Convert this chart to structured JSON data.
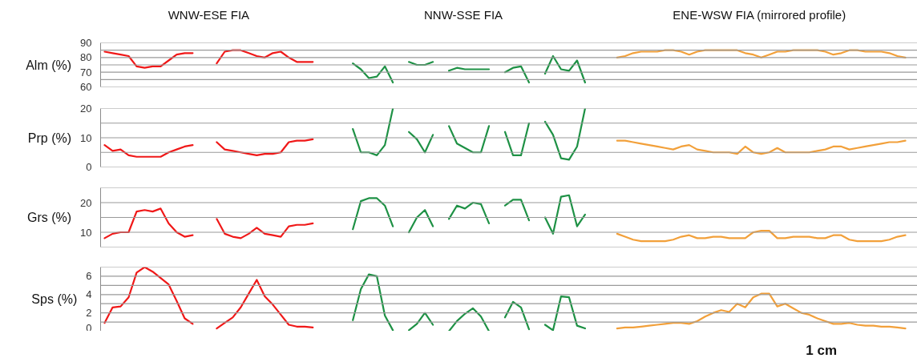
{
  "chart_data": [
    {
      "type": "line",
      "ylabel": "Alm (%)",
      "tick_labels": "y",
      "grid": "y",
      "annotations": [
        "WNW-ESE FIA",
        "NNW-SSE FIA",
        "ENE-WSW FIA (mirrored profile)"
      ],
      "ylim": [
        60,
        90
      ],
      "yticks": [
        60,
        {
          "value": 65,
          "label": null
        },
        70,
        {
          "value": 75,
          "label": null
        },
        80,
        {
          "value": 85,
          "label": null
        },
        90
      ],
      "categories": [
        null,
        null,
        null,
        null,
        null,
        null,
        null,
        null,
        null,
        null,
        null,
        null,
        null,
        null,
        null,
        null,
        null,
        null,
        null,
        null,
        null,
        null,
        null,
        null,
        null,
        null,
        null,
        null,
        null,
        null,
        null,
        null,
        null,
        null,
        null,
        null,
        null,
        null,
        null,
        null,
        null,
        null,
        null,
        null,
        null,
        null,
        null,
        null,
        null,
        null,
        null,
        null,
        null,
        null,
        null,
        null,
        null,
        null,
        null,
        null,
        null,
        null,
        null,
        null,
        null,
        null,
        null,
        null,
        null,
        null,
        null,
        null,
        null,
        null,
        null,
        null,
        null,
        null,
        null,
        null,
        null,
        null,
        null,
        null,
        null,
        null,
        null,
        null,
        null,
        null,
        null,
        null,
        null,
        null,
        null,
        null,
        null,
        null,
        null,
        null,
        null,
        null
      ],
      "series": [
        {
          "color": "#f01818",
          "values": [
            84,
            83,
            82,
            81,
            74,
            73,
            74,
            74,
            78,
            82,
            83,
            83,
            null,
            null,
            76,
            84,
            85,
            85,
            83,
            81,
            80,
            83,
            84,
            80,
            77,
            77,
            77,
            null,
            null,
            null,
            null,
            null,
            null,
            null,
            null,
            null,
            null,
            null,
            null,
            null,
            null,
            null,
            null,
            null,
            null,
            null,
            null,
            null,
            null,
            null,
            null,
            null,
            null,
            null,
            null,
            null,
            null,
            null,
            null,
            null,
            null,
            null,
            null,
            null,
            null,
            null,
            null,
            null,
            null,
            null,
            null,
            null,
            null,
            null,
            null,
            null,
            null,
            null,
            null,
            null,
            null,
            null,
            null,
            null,
            null,
            null,
            null,
            null,
            null,
            null,
            null,
            null,
            null,
            null,
            null,
            null,
            null,
            null,
            null,
            null,
            null,
            null
          ]
        },
        {
          "color": "#1e9145",
          "values": [
            null,
            null,
            null,
            null,
            null,
            null,
            null,
            null,
            null,
            null,
            null,
            null,
            null,
            null,
            null,
            null,
            null,
            null,
            null,
            null,
            null,
            null,
            null,
            null,
            null,
            null,
            null,
            null,
            null,
            null,
            null,
            76,
            72,
            66,
            67,
            74,
            63,
            null,
            77,
            75,
            75,
            77,
            null,
            71,
            73,
            72,
            72,
            72,
            72,
            null,
            70,
            73,
            74,
            63,
            null,
            69,
            81,
            72,
            71,
            78,
            63,
            null,
            null,
            null,
            null,
            null,
            null,
            null,
            null,
            null,
            null,
            null,
            null,
            null,
            null,
            null,
            null,
            null,
            null,
            null,
            null,
            null,
            null,
            null,
            null,
            null,
            null,
            null,
            null,
            null,
            null,
            null,
            null,
            null,
            null,
            null,
            null,
            null,
            null,
            null,
            null,
            null
          ]
        },
        {
          "color": "#f2a03a",
          "values": [
            null,
            null,
            null,
            null,
            null,
            null,
            null,
            null,
            null,
            null,
            null,
            null,
            null,
            null,
            null,
            null,
            null,
            null,
            null,
            null,
            null,
            null,
            null,
            null,
            null,
            null,
            null,
            null,
            null,
            null,
            null,
            null,
            null,
            null,
            null,
            null,
            null,
            null,
            null,
            null,
            null,
            null,
            null,
            null,
            null,
            null,
            null,
            null,
            null,
            null,
            null,
            null,
            null,
            null,
            null,
            null,
            null,
            null,
            null,
            null,
            null,
            null,
            null,
            null,
            80,
            81,
            83,
            84,
            84,
            84,
            85,
            85,
            84,
            82,
            84,
            85,
            85,
            85,
            85,
            85,
            83,
            82,
            80,
            82,
            84,
            84,
            85,
            85,
            85,
            85,
            84,
            82,
            83,
            85,
            85,
            84,
            84,
            84,
            83,
            81,
            80,
            null
          ]
        }
      ]
    },
    {
      "type": "line",
      "ylabel": "Prp (%)",
      "tick_labels": "y",
      "grid": "y",
      "ylim": [
        0,
        20
      ],
      "yticks": [
        0,
        {
          "value": 5,
          "label": null
        },
        10,
        {
          "value": 15,
          "label": null
        },
        20
      ],
      "categories": [
        null,
        null,
        null,
        null,
        null,
        null,
        null,
        null,
        null,
        null,
        null,
        null,
        null,
        null,
        null,
        null,
        null,
        null,
        null,
        null,
        null,
        null,
        null,
        null,
        null,
        null,
        null,
        null,
        null,
        null,
        null,
        null,
        null,
        null,
        null,
        null,
        null,
        null,
        null,
        null,
        null,
        null,
        null,
        null,
        null,
        null,
        null,
        null,
        null,
        null,
        null,
        null,
        null,
        null,
        null,
        null,
        null,
        null,
        null,
        null,
        null,
        null,
        null,
        null,
        null,
        null,
        null,
        null,
        null,
        null,
        null,
        null,
        null,
        null,
        null,
        null,
        null,
        null,
        null,
        null,
        null,
        null,
        null,
        null,
        null,
        null,
        null,
        null,
        null,
        null,
        null,
        null,
        null,
        null,
        null,
        null,
        null,
        null,
        null,
        null,
        null,
        null
      ],
      "series": [
        {
          "color": "#f01818",
          "values": [
            7.5,
            5.5,
            6,
            4,
            3.5,
            3.5,
            3.5,
            3.5,
            5,
            6,
            7,
            7.5,
            null,
            null,
            8.5,
            6,
            5.5,
            5,
            4.5,
            4,
            4.5,
            4.5,
            5,
            8.5,
            9,
            9,
            9.5,
            null,
            null,
            null,
            null,
            null,
            null,
            null,
            null,
            null,
            null,
            null,
            null,
            null,
            null,
            null,
            null,
            null,
            null,
            null,
            null,
            null,
            null,
            null,
            null,
            null,
            null,
            null,
            null,
            null,
            null,
            null,
            null,
            null,
            null,
            null,
            null,
            null,
            null,
            null,
            null,
            null,
            null,
            null,
            null,
            null,
            null,
            null,
            null,
            null,
            null,
            null,
            null,
            null,
            null,
            null,
            null,
            null,
            null,
            null,
            null,
            null,
            null,
            null,
            null,
            null,
            null,
            null,
            null,
            null,
            null,
            null,
            null,
            null,
            null,
            null
          ]
        },
        {
          "color": "#1e9145",
          "values": [
            null,
            null,
            null,
            null,
            null,
            null,
            null,
            null,
            null,
            null,
            null,
            null,
            null,
            null,
            null,
            null,
            null,
            null,
            null,
            null,
            null,
            null,
            null,
            null,
            null,
            null,
            null,
            null,
            null,
            null,
            null,
            13,
            5,
            5,
            4,
            7.5,
            20,
            null,
            12,
            9.5,
            5,
            11,
            null,
            14,
            8,
            6.5,
            5,
            5,
            14,
            null,
            12,
            4,
            4,
            15,
            null,
            15.5,
            11,
            3,
            2.5,
            7,
            20,
            null,
            null,
            null,
            null,
            null,
            null,
            null,
            null,
            null,
            null,
            null,
            null,
            null,
            null,
            null,
            null,
            null,
            null,
            null,
            null,
            null,
            null,
            null,
            null,
            null,
            null,
            null,
            null,
            null,
            null,
            null,
            null,
            null,
            null,
            null,
            null,
            null,
            null,
            null,
            null,
            null
          ]
        },
        {
          "color": "#f2a03a",
          "values": [
            null,
            null,
            null,
            null,
            null,
            null,
            null,
            null,
            null,
            null,
            null,
            null,
            null,
            null,
            null,
            null,
            null,
            null,
            null,
            null,
            null,
            null,
            null,
            null,
            null,
            null,
            null,
            null,
            null,
            null,
            null,
            null,
            null,
            null,
            null,
            null,
            null,
            null,
            null,
            null,
            null,
            null,
            null,
            null,
            null,
            null,
            null,
            null,
            null,
            null,
            null,
            null,
            null,
            null,
            null,
            null,
            null,
            null,
            null,
            null,
            null,
            null,
            null,
            null,
            9,
            9,
            8.5,
            8,
            7.5,
            7,
            6.5,
            6,
            7,
            7.5,
            6,
            5.5,
            5,
            5,
            5,
            4.5,
            7,
            5,
            4.5,
            5,
            6.5,
            5,
            5,
            5,
            5,
            5.5,
            6,
            7,
            7,
            6,
            6.5,
            7,
            7.5,
            8,
            8.5,
            8.5,
            9,
            null
          ]
        }
      ]
    },
    {
      "type": "line",
      "ylabel": "Grs (%)",
      "tick_labels": "y",
      "grid": "y",
      "ylim": [
        5,
        25
      ],
      "yticks": [
        {
          "value": 5,
          "label": null
        },
        10,
        {
          "value": 15,
          "label": null
        },
        20,
        {
          "value": 25,
          "label": null
        }
      ],
      "categories": [
        null,
        null,
        null,
        null,
        null,
        null,
        null,
        null,
        null,
        null,
        null,
        null,
        null,
        null,
        null,
        null,
        null,
        null,
        null,
        null,
        null,
        null,
        null,
        null,
        null,
        null,
        null,
        null,
        null,
        null,
        null,
        null,
        null,
        null,
        null,
        null,
        null,
        null,
        null,
        null,
        null,
        null,
        null,
        null,
        null,
        null,
        null,
        null,
        null,
        null,
        null,
        null,
        null,
        null,
        null,
        null,
        null,
        null,
        null,
        null,
        null,
        null,
        null,
        null,
        null,
        null,
        null,
        null,
        null,
        null,
        null,
        null,
        null,
        null,
        null,
        null,
        null,
        null,
        null,
        null,
        null,
        null,
        null,
        null,
        null,
        null,
        null,
        null,
        null,
        null,
        null,
        null,
        null,
        null,
        null,
        null,
        null,
        null,
        null,
        null,
        null,
        null
      ],
      "series": [
        {
          "color": "#f01818",
          "values": [
            8,
            9.5,
            10,
            10,
            17,
            17.5,
            17,
            18,
            13,
            10,
            8.5,
            9,
            null,
            null,
            14.5,
            9.5,
            8.5,
            8,
            9.5,
            11.5,
            9.5,
            9,
            8.5,
            12,
            12.5,
            12.5,
            13,
            null,
            null,
            null,
            null,
            null,
            null,
            null,
            null,
            null,
            null,
            null,
            null,
            null,
            null,
            null,
            null,
            null,
            null,
            null,
            null,
            null,
            null,
            null,
            null,
            null,
            null,
            null,
            null,
            null,
            null,
            null,
            null,
            null,
            null,
            null,
            null,
            null,
            null,
            null,
            null,
            null,
            null,
            null,
            null,
            null,
            null,
            null,
            null,
            null,
            null,
            null,
            null,
            null,
            null,
            null,
            null,
            null,
            null,
            null,
            null,
            null,
            null,
            null,
            null,
            null,
            null,
            null,
            null,
            null,
            null,
            null,
            null,
            null,
            null,
            null
          ]
        },
        {
          "color": "#1e9145",
          "values": [
            null,
            null,
            null,
            null,
            null,
            null,
            null,
            null,
            null,
            null,
            null,
            null,
            null,
            null,
            null,
            null,
            null,
            null,
            null,
            null,
            null,
            null,
            null,
            null,
            null,
            null,
            null,
            null,
            null,
            null,
            null,
            11,
            20.5,
            21.5,
            21.5,
            19,
            12,
            null,
            10,
            15,
            17.5,
            12,
            null,
            14.5,
            19,
            18,
            20,
            19.5,
            13,
            null,
            19,
            21,
            21,
            14,
            null,
            15,
            9.5,
            22,
            22.5,
            12,
            16,
            null,
            null,
            null,
            null,
            null,
            null,
            null,
            null,
            null,
            null,
            null,
            null,
            null,
            null,
            null,
            null,
            null,
            null,
            null,
            null,
            null,
            null,
            null,
            null,
            null,
            null,
            null,
            null,
            null,
            null,
            null,
            null,
            null,
            null,
            null,
            null,
            null,
            null,
            null,
            null,
            null
          ]
        },
        {
          "color": "#f2a03a",
          "values": [
            null,
            null,
            null,
            null,
            null,
            null,
            null,
            null,
            null,
            null,
            null,
            null,
            null,
            null,
            null,
            null,
            null,
            null,
            null,
            null,
            null,
            null,
            null,
            null,
            null,
            null,
            null,
            null,
            null,
            null,
            null,
            null,
            null,
            null,
            null,
            null,
            null,
            null,
            null,
            null,
            null,
            null,
            null,
            null,
            null,
            null,
            null,
            null,
            null,
            null,
            null,
            null,
            null,
            null,
            null,
            null,
            null,
            null,
            null,
            null,
            null,
            null,
            null,
            null,
            9.5,
            8.5,
            7.5,
            7,
            7,
            7,
            7,
            7.5,
            8.5,
            9,
            8,
            8,
            8.5,
            8.5,
            8,
            8,
            8,
            10,
            10.5,
            10.5,
            8,
            8,
            8.5,
            8.5,
            8.5,
            8,
            8,
            9,
            9,
            7.5,
            7,
            7,
            7,
            7,
            7.5,
            8.5,
            9,
            null
          ]
        }
      ]
    },
    {
      "type": "line",
      "ylabel": "Sps (%)",
      "tick_labels": "y",
      "grid": "y",
      "annotations": [
        "1 cm"
      ],
      "ylim": [
        0,
        7
      ],
      "yticks": [
        0,
        {
          "value": 1,
          "label": null
        },
        2,
        {
          "value": 3,
          "label": null
        },
        4,
        {
          "value": 5,
          "label": null
        },
        6,
        {
          "value": 7,
          "label": null
        }
      ],
      "categories": [
        null,
        null,
        null,
        null,
        null,
        null,
        null,
        null,
        null,
        null,
        null,
        null,
        null,
        null,
        null,
        null,
        null,
        null,
        null,
        null,
        null,
        null,
        null,
        null,
        null,
        null,
        null,
        null,
        null,
        null,
        null,
        null,
        null,
        null,
        null,
        null,
        null,
        null,
        null,
        null,
        null,
        null,
        null,
        null,
        null,
        null,
        null,
        null,
        null,
        null,
        null,
        null,
        null,
        null,
        null,
        null,
        null,
        null,
        null,
        null,
        null,
        null,
        null,
        null,
        null,
        null,
        null,
        null,
        null,
        null,
        null,
        null,
        null,
        null,
        null,
        null,
        null,
        null,
        null,
        null,
        null,
        null,
        null,
        null,
        null,
        null,
        null,
        null,
        null,
        null,
        null,
        null,
        null,
        null,
        null,
        null,
        null,
        null,
        null,
        null,
        null,
        null
      ],
      "series": [
        {
          "color": "#f01818",
          "values": [
            0.9,
            2.6,
            2.7,
            3.7,
            6.4,
            7,
            6.5,
            5.8,
            5.1,
            3.3,
            1.4,
            0.8,
            null,
            null,
            0.3,
            0.9,
            1.5,
            2.6,
            4.1,
            5.6,
            3.8,
            2.9,
            1.8,
            0.7,
            0.5,
            0.5,
            0.4,
            null,
            null,
            null,
            null,
            null,
            null,
            null,
            null,
            null,
            null,
            null,
            null,
            null,
            null,
            null,
            null,
            null,
            null,
            null,
            null,
            null,
            null,
            null,
            null,
            null,
            null,
            null,
            null,
            null,
            null,
            null,
            null,
            null,
            null,
            null,
            null,
            null,
            null,
            null,
            null,
            null,
            null,
            null,
            null,
            null,
            null,
            null,
            null,
            null,
            null,
            null,
            null,
            null,
            null,
            null,
            null,
            null,
            null,
            null,
            null,
            null,
            null,
            null,
            null,
            null,
            null,
            null,
            null,
            null,
            null,
            null,
            null,
            null,
            null,
            null
          ]
        },
        {
          "color": "#1e9145",
          "values": [
            null,
            null,
            null,
            null,
            null,
            null,
            null,
            null,
            null,
            null,
            null,
            null,
            null,
            null,
            null,
            null,
            null,
            null,
            null,
            null,
            null,
            null,
            null,
            null,
            null,
            null,
            null,
            null,
            null,
            null,
            null,
            1.2,
            4.6,
            6.2,
            6,
            1.7,
            0.1,
            null,
            0.1,
            0.8,
            2,
            0.7,
            null,
            0,
            1.1,
            1.9,
            2.5,
            1.6,
            0,
            null,
            1.5,
            3.2,
            2.6,
            0.2,
            null,
            0.7,
            0.1,
            3.8,
            3.7,
            0.6,
            0.3,
            null,
            null,
            null,
            null,
            null,
            null,
            null,
            null,
            null,
            null,
            null,
            null,
            null,
            null,
            null,
            null,
            null,
            null,
            null,
            null,
            null,
            null,
            null,
            null,
            null,
            null,
            null,
            null,
            null,
            null,
            null,
            null,
            null,
            null,
            null,
            null,
            null,
            null,
            null,
            null,
            null
          ]
        },
        {
          "color": "#f2a03a",
          "values": [
            null,
            null,
            null,
            null,
            null,
            null,
            null,
            null,
            null,
            null,
            null,
            null,
            null,
            null,
            null,
            null,
            null,
            null,
            null,
            null,
            null,
            null,
            null,
            null,
            null,
            null,
            null,
            null,
            null,
            null,
            null,
            null,
            null,
            null,
            null,
            null,
            null,
            null,
            null,
            null,
            null,
            null,
            null,
            null,
            null,
            null,
            null,
            null,
            null,
            null,
            null,
            null,
            null,
            null,
            null,
            null,
            null,
            null,
            null,
            null,
            null,
            null,
            null,
            null,
            0.3,
            0.4,
            0.4,
            0.5,
            0.6,
            0.7,
            0.8,
            0.9,
            0.9,
            0.8,
            1.1,
            1.6,
            2,
            2.3,
            2.1,
            3,
            2.6,
            3.7,
            4.1,
            4.1,
            2.7,
            3,
            2.5,
            2,
            1.8,
            1.4,
            1.1,
            0.8,
            0.8,
            0.9,
            0.7,
            0.6,
            0.6,
            0.5,
            0.5,
            0.4,
            0.3,
            null
          ]
        }
      ]
    }
  ]
}
